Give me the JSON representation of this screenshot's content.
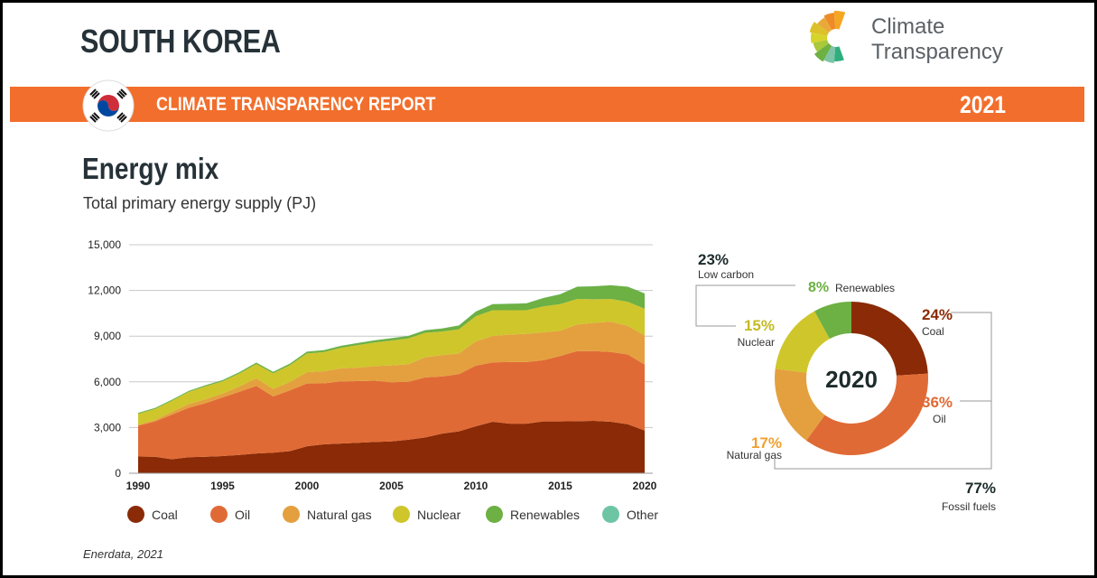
{
  "header": {
    "country": "SOUTH KOREA",
    "logo_line1": "Climate",
    "logo_line2": "Transparency",
    "report": "CLIMATE TRANSPARENCY REPORT",
    "year": "2021"
  },
  "section": {
    "title": "Energy mix",
    "subtitle": "Total primary energy supply (PJ)",
    "source": "Enerdata, 2021"
  },
  "colors": {
    "Coal": "#8a2a06",
    "Oil": "#e06a35",
    "Natural gas": "#e4a03e",
    "Nuclear": "#cfc62c",
    "Renewables": "#6db043",
    "Other": "#6dc5a4",
    "orange": "#f26e2c"
  },
  "chart_data": [
    {
      "type": "area",
      "title": "Total primary energy supply (PJ)",
      "xlabel": "",
      "ylabel": "PJ",
      "ylim": [
        0,
        15000
      ],
      "yticks": [
        "0",
        "3,000",
        "6,000",
        "9,000",
        "12,000",
        "15,000"
      ],
      "xticks": [
        "1990",
        "1995",
        "2000",
        "2005",
        "2010",
        "2015",
        "2020"
      ],
      "grid": true,
      "legend": "bottom",
      "x": [
        1990,
        1991,
        1992,
        1993,
        1994,
        1995,
        1996,
        1997,
        1998,
        1999,
        2000,
        2001,
        2002,
        2003,
        2004,
        2005,
        2006,
        2007,
        2008,
        2009,
        2010,
        2011,
        2012,
        2013,
        2014,
        2015,
        2016,
        2017,
        2018,
        2019,
        2020
      ],
      "series": [
        {
          "name": "Coal",
          "values": [
            1100,
            1080,
            920,
            1050,
            1080,
            1130,
            1200,
            1300,
            1350,
            1450,
            1770,
            1900,
            1950,
            2000,
            2050,
            2090,
            2200,
            2350,
            2600,
            2750,
            3080,
            3380,
            3250,
            3250,
            3400,
            3400,
            3420,
            3440,
            3380,
            3220,
            2800
          ]
        },
        {
          "name": "Oil",
          "values": [
            2020,
            2320,
            2930,
            3250,
            3520,
            3850,
            4150,
            4430,
            3690,
            4000,
            4120,
            4000,
            4080,
            4050,
            4030,
            3880,
            3800,
            3940,
            3750,
            3760,
            3980,
            3900,
            4050,
            4050,
            4020,
            4300,
            4600,
            4580,
            4580,
            4580,
            4340
          ]
        },
        {
          "name": "Natural gas",
          "values": [
            60,
            100,
            180,
            240,
            260,
            250,
            350,
            500,
            490,
            550,
            740,
            800,
            850,
            880,
            950,
            1110,
            1150,
            1330,
            1400,
            1350,
            1600,
            1730,
            1800,
            1850,
            1830,
            1650,
            1750,
            1850,
            1990,
            1870,
            1910
          ]
        },
        {
          "name": "Nuclear",
          "values": [
            720,
            720,
            730,
            800,
            850,
            800,
            850,
            940,
            1030,
            1100,
            1230,
            1250,
            1350,
            1480,
            1550,
            1630,
            1700,
            1600,
            1550,
            1590,
            1650,
            1690,
            1600,
            1550,
            1700,
            1750,
            1670,
            1550,
            1490,
            1590,
            1750
          ]
        },
        {
          "name": "Renewables",
          "values": [
            60,
            62,
            64,
            66,
            70,
            80,
            85,
            90,
            95,
            100,
            120,
            125,
            130,
            135,
            140,
            150,
            160,
            170,
            200,
            250,
            300,
            400,
            420,
            450,
            550,
            650,
            800,
            850,
            900,
            980,
            1000
          ]
        },
        {
          "name": "Other",
          "values": [
            10,
            10,
            10,
            10,
            10,
            10,
            10,
            10,
            10,
            10,
            10,
            10,
            10,
            10,
            10,
            10,
            10,
            10,
            10,
            10,
            10,
            10,
            10,
            10,
            10,
            10,
            10,
            10,
            10,
            10,
            10
          ]
        }
      ]
    },
    {
      "type": "pie",
      "title": "2020",
      "slices": [
        {
          "name": "Coal",
          "label": "Coal",
          "pct": "24%",
          "value": 24
        },
        {
          "name": "Oil",
          "label": "Oil",
          "pct": "36%",
          "value": 36
        },
        {
          "name": "Natural gas",
          "label": "Natural gas",
          "pct": "17%",
          "value": 17
        },
        {
          "name": "Nuclear",
          "label": "Nuclear",
          "pct": "15%",
          "value": 15
        },
        {
          "name": "Renewables",
          "label": "Renewables",
          "pct": "8%",
          "value": 8
        }
      ],
      "groups": [
        {
          "pct": "23%",
          "label": "Low carbon"
        },
        {
          "pct": "77%",
          "label": "Fossil fuels"
        }
      ]
    }
  ],
  "legend": [
    "Coal",
    "Oil",
    "Natural gas",
    "Nuclear",
    "Renewables",
    "Other"
  ]
}
